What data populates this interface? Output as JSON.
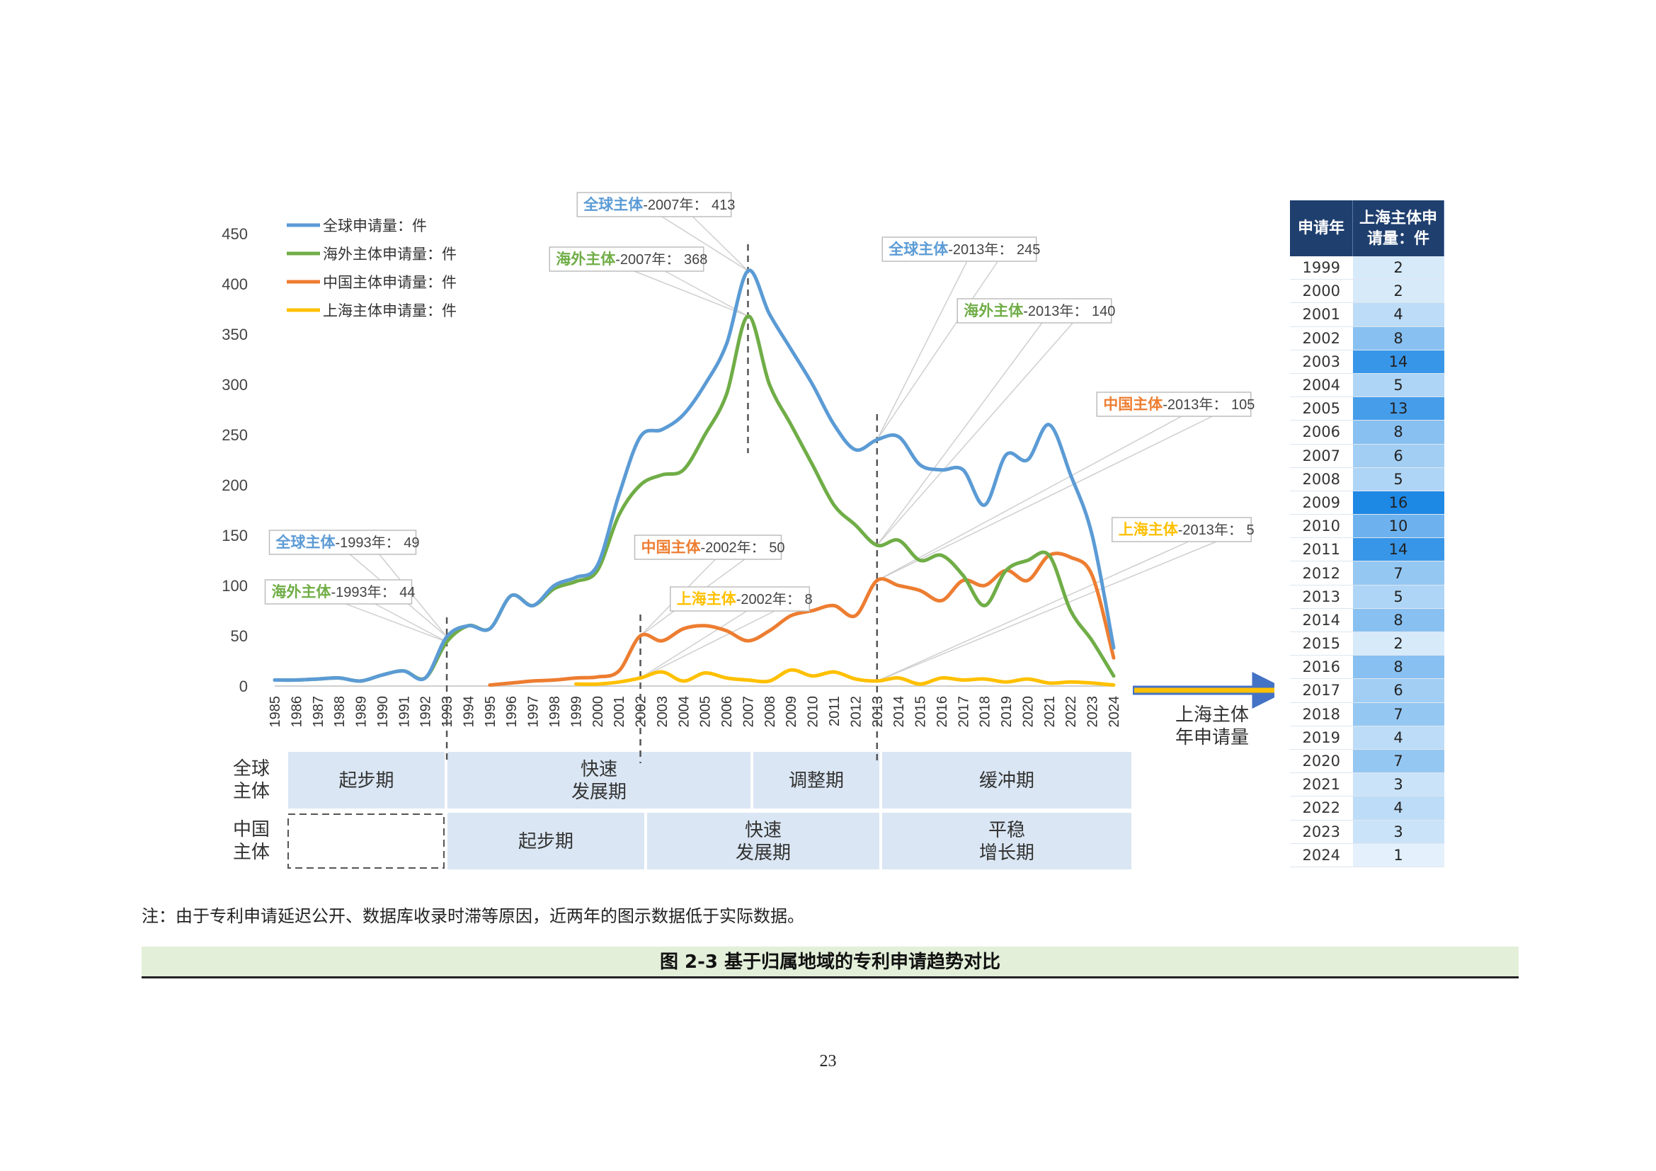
{
  "chart_data": {
    "type": "line",
    "ylim": [
      0,
      450
    ],
    "y_ticks": [
      "0",
      "50",
      "100",
      "150",
      "200",
      "250",
      "300",
      "350",
      "400",
      "450"
    ],
    "x": [
      1985,
      1986,
      1987,
      1988,
      1989,
      1990,
      1991,
      1992,
      1993,
      1994,
      1995,
      1996,
      1997,
      1998,
      1999,
      2000,
      2001,
      2002,
      2003,
      2004,
      2005,
      2006,
      2007,
      2008,
      2009,
      2010,
      2011,
      2012,
      2013,
      2014,
      2015,
      2016,
      2017,
      2018,
      2019,
      2020,
      2021,
      2022,
      2023,
      2024
    ],
    "x_labels": [
      "1985",
      "1986",
      "1987",
      "1988",
      "1989",
      "1990",
      "1991",
      "1992",
      "1993",
      "1994",
      "1995",
      "1996",
      "1997",
      "1998",
      "1999",
      "2000",
      "2001",
      "2002",
      "2003",
      "2004",
      "2005",
      "2006",
      "2007",
      "2008",
      "2009",
      "2010",
      "2011",
      "2012",
      "2013",
      "2014",
      "2015",
      "2016",
      "2017",
      "2018",
      "2019",
      "2020",
      "2021",
      "2022",
      "2023",
      "2024"
    ],
    "series": [
      {
        "name": "全球申请量：件",
        "color": "#5b9bd5",
        "values": [
          6,
          6,
          7,
          8,
          5,
          11,
          15,
          8,
          49,
          60,
          57,
          90,
          80,
          100,
          108,
          120,
          190,
          248,
          255,
          270,
          300,
          340,
          413,
          370,
          335,
          300,
          260,
          235,
          245,
          248,
          220,
          215,
          215,
          180,
          230,
          225,
          260,
          210,
          150,
          38
        ]
      },
      {
        "name": "海外主体申请量：件",
        "color": "#70ad47",
        "values": [
          6,
          6,
          7,
          8,
          5,
          11,
          15,
          8,
          44,
          60,
          57,
          90,
          80,
          97,
          104,
          115,
          170,
          200,
          210,
          215,
          250,
          290,
          368,
          300,
          260,
          220,
          180,
          160,
          140,
          145,
          125,
          130,
          110,
          80,
          115,
          125,
          130,
          75,
          45,
          10
        ]
      },
      {
        "name": "中国主体申请量：件",
        "color": "#ed7d31",
        "values": [
          null,
          null,
          null,
          null,
          null,
          null,
          null,
          null,
          null,
          null,
          1,
          3,
          5,
          6,
          8,
          9,
          15,
          50,
          45,
          57,
          60,
          55,
          45,
          55,
          70,
          75,
          80,
          70,
          105,
          100,
          95,
          85,
          105,
          100,
          115,
          105,
          130,
          128,
          110,
          28
        ]
      },
      {
        "name": "上海主体申请量：件",
        "color": "#ffc000",
        "values": [
          null,
          null,
          null,
          null,
          null,
          null,
          null,
          null,
          null,
          null,
          null,
          null,
          null,
          null,
          2,
          2,
          4,
          8,
          14,
          5,
          13,
          8,
          6,
          5,
          16,
          10,
          14,
          7,
          5,
          8,
          2,
          8,
          6,
          7,
          4,
          7,
          3,
          4,
          3,
          1
        ]
      }
    ],
    "annotations": [
      {
        "text_a": "全球主体",
        "text_b": "-1993年： 49",
        "color": "#5b9bd5",
        "x": 1993,
        "y": 49
      },
      {
        "text_a": "海外主体",
        "text_b": "-1993年： 44",
        "color": "#70ad47",
        "x": 1993,
        "y": 44
      },
      {
        "text_a": "全球主体",
        "text_b": "-2007年： 413",
        "color": "#5b9bd5",
        "x": 2007,
        "y": 413
      },
      {
        "text_a": "海外主体",
        "text_b": "-2007年： 368",
        "color": "#70ad47",
        "x": 2007,
        "y": 368
      },
      {
        "text_a": "中国主体",
        "text_b": "-2002年： 50",
        "color": "#ed7d31",
        "x": 2002,
        "y": 50
      },
      {
        "text_a": "上海主体",
        "text_b": "-2002年： 8",
        "color": "#ffc000",
        "x": 2002,
        "y": 8
      },
      {
        "text_a": "全球主体",
        "text_b": "-2013年： 245",
        "color": "#5b9bd5",
        "x": 2013,
        "y": 245
      },
      {
        "text_a": "海外主体",
        "text_b": "-2013年： 140",
        "color": "#70ad47",
        "x": 2013,
        "y": 140
      },
      {
        "text_a": "中国主体",
        "text_b": "-2013年： 105",
        "color": "#ed7d31",
        "x": 2013,
        "y": 105
      },
      {
        "text_a": "上海主体",
        "text_b": "-2013年： 5",
        "color": "#ffc000",
        "x": 2013,
        "y": 5
      }
    ],
    "reference_lines": [
      1993,
      2002,
      2007,
      2013
    ],
    "grid": false,
    "legend": "top-left"
  },
  "phases": {
    "global_label": [
      "全球",
      "主体"
    ],
    "china_label": [
      "中国",
      "主体"
    ],
    "global": [
      {
        "label": [
          "起步期"
        ],
        "from": 1985,
        "to": 1993
      },
      {
        "label": [
          "快速",
          "发展期"
        ],
        "from": 1993,
        "to": 2007
      },
      {
        "label": [
          "调整期"
        ],
        "from": 2007,
        "to": 2013
      },
      {
        "label": [
          "缓冲期"
        ],
        "from": 2013,
        "to": 2024
      }
    ],
    "china": [
      {
        "label": [
          "起步期"
        ],
        "from": 1993,
        "to": 2002
      },
      {
        "label": [
          "快速",
          "发展期"
        ],
        "from": 2002,
        "to": 2013
      },
      {
        "label": [
          "平稳",
          "增长期"
        ],
        "from": 2013,
        "to": 2024
      }
    ]
  },
  "arrow_label": [
    "上海主体",
    "年申请量"
  ],
  "table": {
    "headers": [
      "申请年",
      "上海主体申请量：件"
    ],
    "rows": [
      [
        "1999",
        "2"
      ],
      [
        "2000",
        "2"
      ],
      [
        "2001",
        "4"
      ],
      [
        "2002",
        "8"
      ],
      [
        "2003",
        "14"
      ],
      [
        "2004",
        "5"
      ],
      [
        "2005",
        "13"
      ],
      [
        "2006",
        "8"
      ],
      [
        "2007",
        "6"
      ],
      [
        "2008",
        "5"
      ],
      [
        "2009",
        "16"
      ],
      [
        "2010",
        "10"
      ],
      [
        "2011",
        "14"
      ],
      [
        "2012",
        "7"
      ],
      [
        "2013",
        "5"
      ],
      [
        "2014",
        "8"
      ],
      [
        "2015",
        "2"
      ],
      [
        "2016",
        "8"
      ],
      [
        "2017",
        "6"
      ],
      [
        "2018",
        "7"
      ],
      [
        "2019",
        "4"
      ],
      [
        "2020",
        "7"
      ],
      [
        "2021",
        "3"
      ],
      [
        "2022",
        "4"
      ],
      [
        "2023",
        "3"
      ],
      [
        "2024",
        "1"
      ]
    ],
    "max_value": 16,
    "heat_low": "#ffffff",
    "heat_high": "#1e88e5"
  },
  "note": "注：由于专利申请延迟公开、数据库收录时滞等原因，近两年的图示数据低于实际数据。",
  "caption": "图 2-3  基于归属地域的专利申请趋势对比",
  "page_number": "23"
}
